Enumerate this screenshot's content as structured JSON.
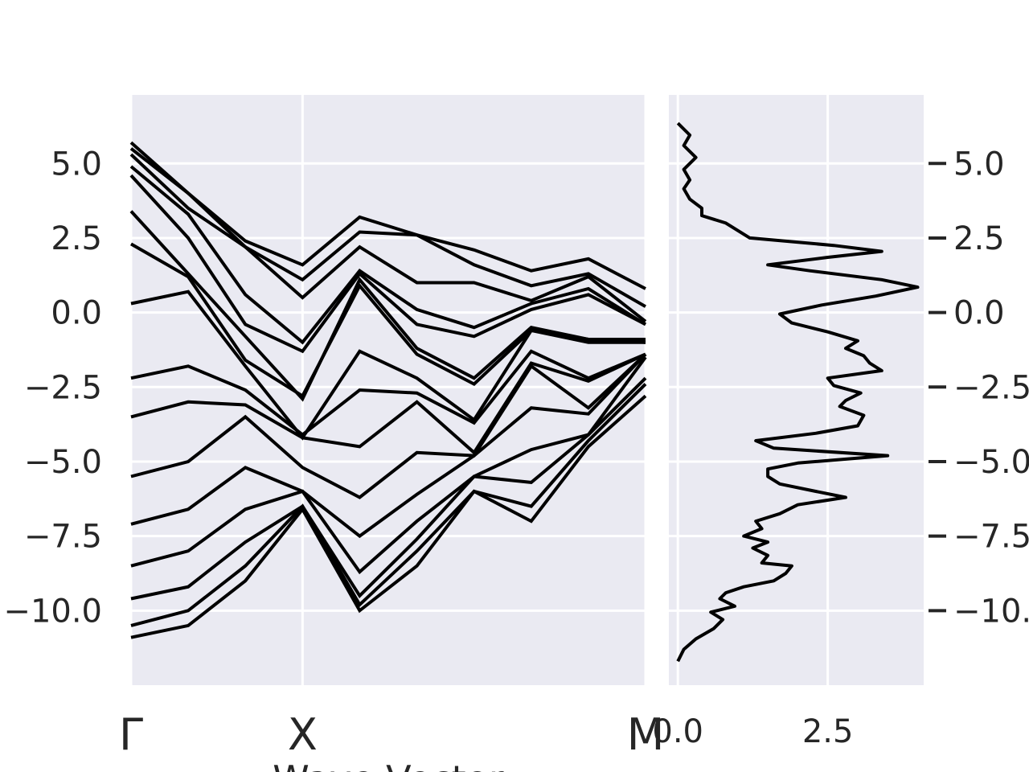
{
  "colors": {
    "panel_bg": "#EAEAF2",
    "grid": "#ffffff",
    "line": "#000000",
    "text": "#262626"
  },
  "chart_data": [
    {
      "type": "line",
      "title": "",
      "xlabel": "Wave Vector",
      "ylabel": "",
      "grid": true,
      "kpoint_labels": [
        "Γ",
        "X",
        "M"
      ],
      "kpoint_positions": [
        0,
        3,
        9
      ],
      "ylim": [
        -12.5,
        7.3
      ],
      "yticks": [
        5.0,
        2.5,
        0.0,
        -2.5,
        -5.0,
        -7.5,
        -10.0
      ],
      "ytick_labels": [
        "5.0",
        "2.5",
        "0.0",
        "−2.5",
        "−5.0",
        "−7.5",
        "−10.0"
      ],
      "x": [
        0,
        1,
        2,
        3,
        4,
        5,
        6,
        7,
        8,
        9
      ],
      "series": [
        {
          "values": [
            -10.9,
            -10.5,
            -9.0,
            -6.6,
            -10.0,
            -8.5,
            -6.0,
            -7.0,
            -4.5,
            -2.8
          ]
        },
        {
          "values": [
            -10.5,
            -10.0,
            -8.5,
            -6.5,
            -9.8,
            -8.0,
            -6.0,
            -6.5,
            -4.3,
            -2.4
          ]
        },
        {
          "values": [
            -9.6,
            -9.2,
            -7.7,
            -6.5,
            -9.5,
            -7.6,
            -5.5,
            -5.7,
            -4.1,
            -2.2
          ]
        },
        {
          "values": [
            -8.5,
            -8.0,
            -6.6,
            -6.0,
            -8.7,
            -7.0,
            -5.5,
            -4.6,
            -4.1,
            -1.5
          ]
        },
        {
          "values": [
            -7.1,
            -6.6,
            -5.2,
            -6.0,
            -7.5,
            -6.1,
            -4.8,
            -3.2,
            -3.4,
            -1.4
          ]
        },
        {
          "values": [
            -5.5,
            -5.0,
            -3.5,
            -5.2,
            -6.2,
            -4.7,
            -4.8,
            -1.8,
            -3.2,
            -1.4
          ]
        },
        {
          "values": [
            -3.5,
            -3.0,
            -3.1,
            -4.2,
            -4.5,
            -3.0,
            -4.7,
            -1.7,
            -2.3,
            -1.4
          ]
        },
        {
          "values": [
            -2.2,
            -1.8,
            -2.6,
            -4.1,
            -2.6,
            -2.7,
            -3.7,
            -1.3,
            -2.2,
            -1.4
          ]
        },
        {
          "values": [
            0.3,
            0.7,
            -1.8,
            -4.2,
            -1.3,
            -2.2,
            -3.6,
            -0.6,
            -1.0,
            -1.0
          ]
        },
        {
          "values": [
            2.3,
            1.2,
            -1.6,
            -2.8,
            0.9,
            -1.4,
            -2.4,
            -0.6,
            -0.9,
            -1.0
          ]
        },
        {
          "values": [
            3.4,
            1.3,
            -0.8,
            -2.9,
            1.1,
            -1.2,
            -2.2,
            -0.5,
            -0.9,
            -0.9
          ]
        },
        {
          "values": [
            4.6,
            2.5,
            -0.4,
            -1.3,
            1.3,
            -0.4,
            -0.8,
            0.1,
            0.6,
            -0.4
          ]
        },
        {
          "values": [
            4.9,
            3.3,
            0.6,
            -1.0,
            1.4,
            0.1,
            -0.5,
            0.3,
            0.8,
            -0.4
          ]
        },
        {
          "values": [
            5.3,
            3.5,
            2.2,
            0.5,
            2.2,
            1.0,
            1.0,
            0.4,
            1.2,
            -0.3
          ]
        },
        {
          "values": [
            5.5,
            4.0,
            2.2,
            1.1,
            2.7,
            2.6,
            1.6,
            0.9,
            1.3,
            0.2
          ]
        },
        {
          "values": [
            5.7,
            4.0,
            2.4,
            1.6,
            3.2,
            2.6,
            2.1,
            1.4,
            1.8,
            0.8
          ]
        }
      ]
    },
    {
      "type": "line",
      "title": "",
      "xlabel": "",
      "ylabel": "",
      "grid": true,
      "orientation": "vertical",
      "xlim": [
        -0.15,
        4.1
      ],
      "ylim": [
        -12.5,
        7.3
      ],
      "xticks": [
        0.0,
        2.5
      ],
      "xtick_labels": [
        "0.0",
        "2.5"
      ],
      "yticks": [
        5.0,
        2.5,
        0.0,
        -2.5,
        -5.0,
        -7.5,
        -10.0
      ],
      "ytick_labels": [
        "5.0",
        "2.5",
        "0.0",
        "−2.5",
        "−5.0",
        "−7.5",
        "−10.0"
      ],
      "ytick_side": "right",
      "energy": [
        -11.7,
        -11.3,
        -10.95,
        -10.6,
        -10.3,
        -10.05,
        -9.85,
        -9.6,
        -9.4,
        -9.2,
        -9.0,
        -8.75,
        -8.5,
        -8.4,
        -8.15,
        -7.9,
        -7.7,
        -7.5,
        -7.25,
        -7.0,
        -6.75,
        -6.45,
        -6.2,
        -6.0,
        -5.75,
        -5.5,
        -5.25,
        -5.05,
        -4.8,
        -4.55,
        -4.3,
        -4.05,
        -3.8,
        -3.45,
        -3.15,
        -2.95,
        -2.7,
        -2.45,
        -2.2,
        -1.95,
        -1.7,
        -1.45,
        -1.2,
        -0.95,
        -0.65,
        -0.35,
        -0.05,
        0.25,
        0.55,
        0.85,
        1.1,
        1.4,
        1.6,
        1.85,
        2.05,
        2.25,
        2.5,
        2.75,
        3.0,
        3.25,
        3.5,
        3.8,
        4.15,
        4.45,
        4.8,
        5.2,
        5.6,
        5.95,
        6.35
      ],
      "values": [
        0.0,
        0.1,
        0.3,
        0.6,
        0.75,
        0.55,
        0.95,
        0.7,
        0.8,
        1.1,
        1.6,
        1.8,
        1.9,
        1.4,
        1.5,
        1.25,
        1.5,
        1.1,
        1.4,
        1.3,
        1.7,
        2.0,
        2.8,
        2.3,
        1.7,
        1.5,
        1.5,
        2.0,
        3.5,
        1.6,
        1.3,
        2.3,
        3.0,
        3.1,
        2.7,
        2.8,
        3.05,
        2.6,
        2.5,
        3.4,
        3.2,
        3.1,
        2.8,
        3.0,
        2.5,
        1.9,
        1.7,
        2.4,
        3.3,
        4.0,
        3.4,
        2.2,
        1.5,
        2.5,
        3.4,
        2.6,
        1.2,
        1.0,
        0.8,
        0.4,
        0.4,
        0.2,
        0.1,
        0.2,
        0.1,
        0.3,
        0.1,
        0.2,
        0.0
      ]
    }
  ]
}
